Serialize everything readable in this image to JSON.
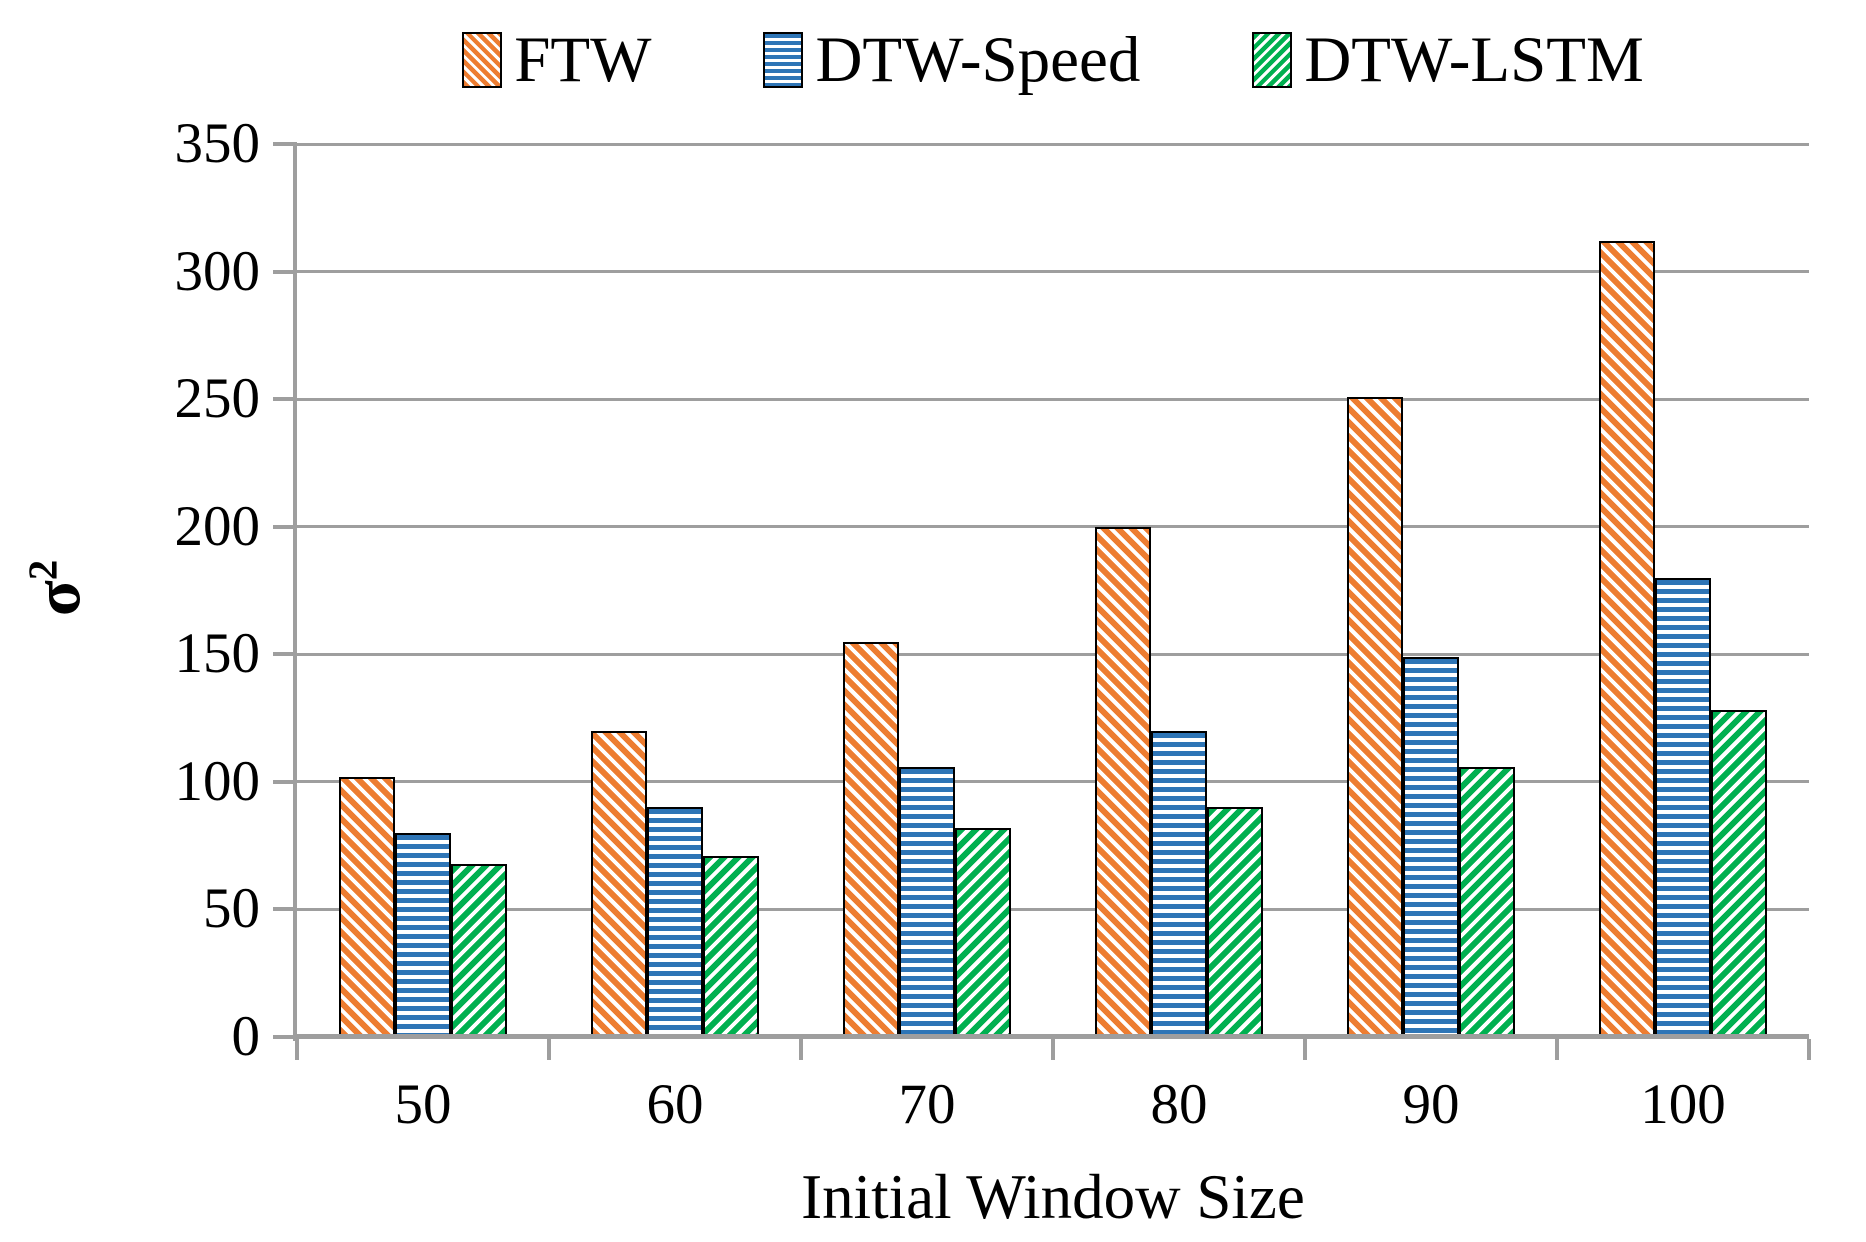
{
  "chart_data": {
    "type": "bar",
    "title": "",
    "xlabel": "Initial Window Size",
    "ylabel": "σ²",
    "categories": [
      "50",
      "60",
      "70",
      "80",
      "90",
      "100"
    ],
    "series": [
      {
        "name": "FTW",
        "color": "#ED7D31",
        "pattern": "diagonal-down",
        "values": [
          102,
          120,
          155,
          200,
          251,
          312
        ]
      },
      {
        "name": "DTW-Speed",
        "color": "#2E75B6",
        "pattern": "horizontal",
        "values": [
          80,
          90,
          106,
          120,
          149,
          180
        ]
      },
      {
        "name": "DTW-LSTM",
        "color": "#00B050",
        "pattern": "diagonal-up",
        "values": [
          68,
          71,
          82,
          90,
          106,
          128
        ]
      }
    ],
    "ylim": [
      0,
      350
    ],
    "yticks": [
      0,
      50,
      100,
      150,
      200,
      250,
      300,
      350
    ],
    "grid": true,
    "legend_position": "top"
  },
  "axes": {
    "x_title": "Initial Window Size",
    "y_title_base": "σ",
    "y_title_exponent": "2"
  },
  "colors": {
    "grid": "#9E9E9E",
    "axis": "#9E9E9E",
    "bar_border": "#000000",
    "background": "#FFFFFF"
  }
}
